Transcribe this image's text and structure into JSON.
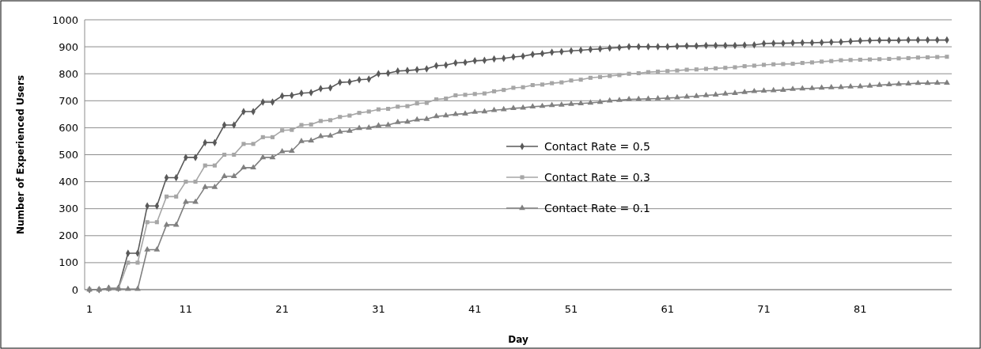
{
  "chart_data": {
    "type": "line",
    "xlabel": "Day",
    "ylabel": "Number of Experienced Users",
    "x": [
      1,
      2,
      3,
      4,
      5,
      6,
      7,
      8,
      9,
      10,
      11,
      12,
      13,
      14,
      15,
      16,
      17,
      18,
      19,
      20,
      21,
      22,
      23,
      24,
      25,
      26,
      27,
      28,
      29,
      30,
      31,
      32,
      33,
      34,
      35,
      36,
      37,
      38,
      39,
      40,
      41,
      42,
      43,
      44,
      45,
      46,
      47,
      48,
      49,
      50,
      51,
      52,
      53,
      54,
      55,
      56,
      57,
      58,
      59,
      60,
      61,
      62,
      63,
      64,
      65,
      66,
      67,
      68,
      69,
      70,
      71,
      72,
      73,
      74,
      75,
      76,
      77,
      78,
      79,
      80,
      81,
      82,
      83,
      84,
      85,
      86,
      87,
      88,
      89,
      90
    ],
    "xlim": [
      0.5,
      90.5
    ],
    "xticks": [
      1,
      11,
      21,
      31,
      41,
      51,
      61,
      71,
      81
    ],
    "ylim": [
      0,
      1000
    ],
    "yticks": [
      0,
      100,
      200,
      300,
      400,
      500,
      600,
      700,
      800,
      900,
      1000
    ],
    "grid": "y",
    "legend": "center",
    "series": [
      {
        "name": "Contact Rate = 0.5",
        "color": "#595959",
        "marker": "diamond",
        "values": [
          0,
          0,
          5,
          5,
          135,
          135,
          310,
          310,
          415,
          415,
          490,
          490,
          545,
          545,
          610,
          610,
          660,
          660,
          695,
          695,
          718,
          720,
          728,
          730,
          745,
          748,
          768,
          770,
          778,
          780,
          800,
          802,
          810,
          812,
          815,
          818,
          830,
          832,
          840,
          842,
          848,
          850,
          855,
          857,
          862,
          865,
          872,
          875,
          880,
          882,
          885,
          887,
          890,
          892,
          895,
          897,
          900,
          900,
          900,
          900,
          900,
          902,
          903,
          903,
          905,
          905,
          905,
          905,
          906,
          907,
          912,
          913,
          913,
          914,
          915,
          915,
          916,
          917,
          918,
          920,
          922,
          923,
          924,
          924,
          924,
          925,
          925,
          925,
          925,
          925
        ]
      },
      {
        "name": "Contact Rate = 0.3",
        "color": "#a6a6a6",
        "marker": "square",
        "values": [
          0,
          0,
          3,
          3,
          100,
          100,
          250,
          250,
          345,
          345,
          400,
          400,
          460,
          460,
          500,
          500,
          540,
          540,
          565,
          565,
          590,
          592,
          610,
          612,
          625,
          628,
          640,
          645,
          655,
          660,
          668,
          670,
          678,
          680,
          690,
          692,
          705,
          708,
          720,
          722,
          725,
          727,
          735,
          740,
          748,
          750,
          758,
          760,
          765,
          768,
          775,
          778,
          785,
          788,
          792,
          795,
          800,
          802,
          806,
          808,
          810,
          812,
          815,
          816,
          818,
          820,
          822,
          824,
          828,
          830,
          833,
          835,
          836,
          837,
          840,
          842,
          845,
          847,
          850,
          851,
          852,
          853,
          854,
          855,
          857,
          858,
          860,
          861,
          862,
          863
        ]
      },
      {
        "name": "Contact Rate = 0.1",
        "color": "#808080",
        "marker": "triangle",
        "values": [
          0,
          0,
          3,
          3,
          2,
          2,
          148,
          148,
          240,
          240,
          325,
          325,
          380,
          380,
          420,
          420,
          452,
          452,
          490,
          490,
          512,
          514,
          550,
          552,
          568,
          570,
          585,
          588,
          598,
          600,
          608,
          610,
          620,
          622,
          630,
          632,
          642,
          645,
          650,
          652,
          658,
          660,
          665,
          668,
          672,
          674,
          678,
          680,
          683,
          685,
          688,
          690,
          692,
          695,
          700,
          702,
          705,
          706,
          707,
          708,
          710,
          712,
          715,
          717,
          720,
          722,
          726,
          728,
          732,
          735,
          737,
          738,
          740,
          743,
          745,
          746,
          748,
          749,
          750,
          752,
          753,
          755,
          758,
          760,
          762,
          763,
          765,
          765,
          766,
          766
        ]
      }
    ]
  }
}
